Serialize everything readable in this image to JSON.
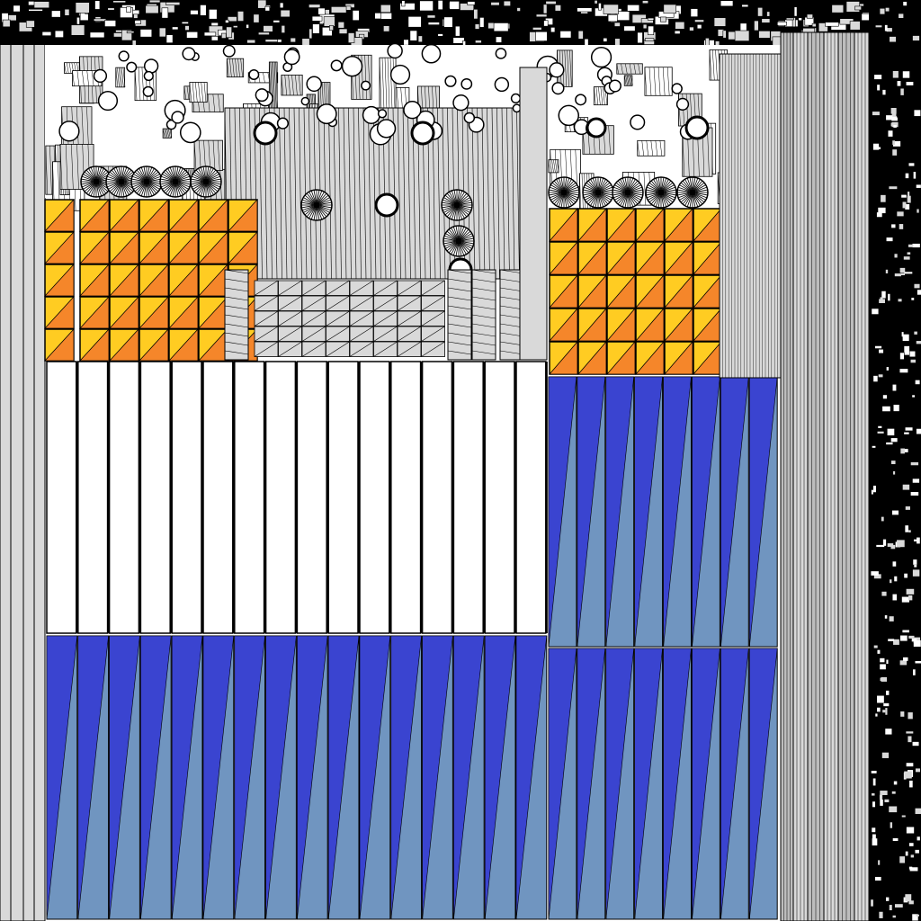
{
  "title": "",
  "palette": {
    "background": "#ffffff",
    "light_gray": "#d9d9d9",
    "mid_gray": "#bdbdbd",
    "ink": "#000000",
    "orange": "#f5862a",
    "yellow": "#ffcc22",
    "blue_dark": "#3a44d0",
    "blue_light": "#7095c0",
    "white": "#ffffff"
  },
  "regions": [
    {
      "name": "left-edge-strips",
      "pattern": "vertical-strips",
      "fill": "light_gray",
      "count": 4
    },
    {
      "name": "top-dense-band",
      "pattern": "dense-black-clutter",
      "fill": "ink"
    },
    {
      "name": "orange-tiles-left",
      "pattern": "diagonal-tile-grid",
      "fill": [
        "orange",
        "yellow"
      ],
      "columns": 6,
      "rows": 5
    },
    {
      "name": "orange-tiles-right",
      "pattern": "diagonal-tile-grid",
      "fill": [
        "orange",
        "yellow"
      ],
      "columns": 6,
      "rows": 5
    },
    {
      "name": "center-gray-grid",
      "pattern": "hatched-grid",
      "fill": "light_gray",
      "columns": 8,
      "rows": 5
    },
    {
      "name": "white-column-strips",
      "pattern": "vertical-panels",
      "fill": "white",
      "count": 16
    },
    {
      "name": "blue-wedges-right",
      "pattern": "diagonal-wedges",
      "fill": [
        "blue_dark",
        "blue_light"
      ],
      "count": 8
    },
    {
      "name": "blue-wedges-bottom-left",
      "pattern": "diagonal-wedges",
      "fill": [
        "blue_dark",
        "blue_light"
      ],
      "count": 16
    },
    {
      "name": "blue-wedges-bottom-right",
      "pattern": "diagonal-wedges",
      "fill": [
        "blue_dark",
        "blue_light"
      ],
      "count": 8
    },
    {
      "name": "right-gray-strips",
      "pattern": "vertical-strips",
      "fill": "light_gray",
      "count": 6
    },
    {
      "name": "far-right-noise-column",
      "pattern": "dense-black-clutter",
      "fill": "ink"
    },
    {
      "name": "spiked-discs",
      "pattern": "radial-discs",
      "fill": "ink",
      "count": 11
    },
    {
      "name": "white-circles",
      "pattern": "outlined-circles",
      "fill": "white",
      "count": 30
    }
  ]
}
